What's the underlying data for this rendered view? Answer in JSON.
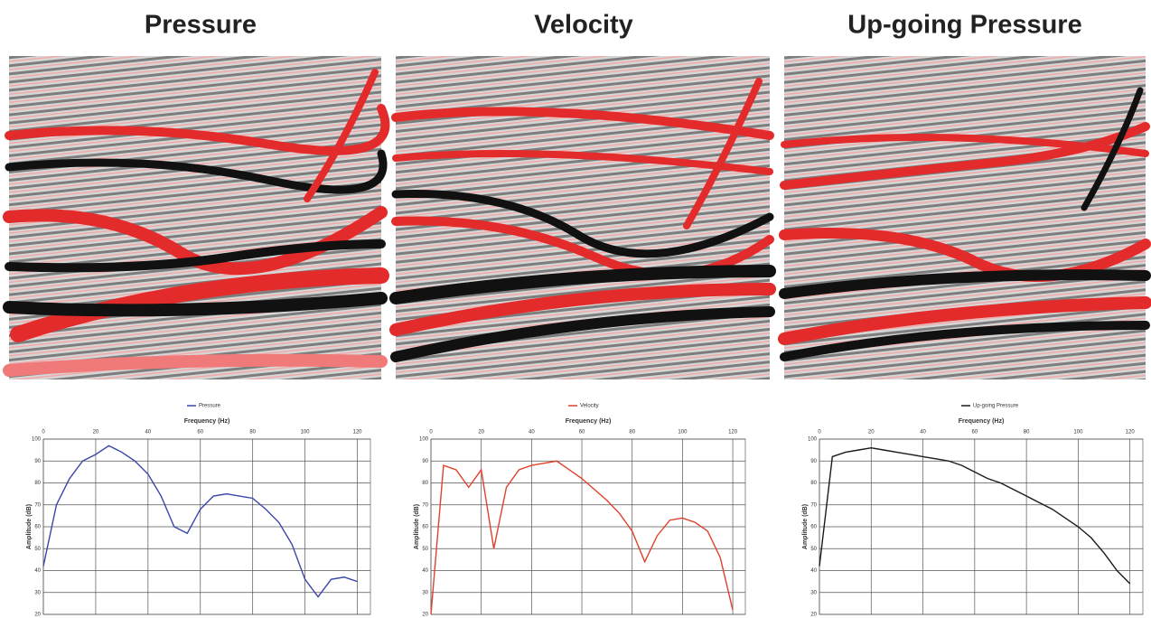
{
  "chart_data": [
    {
      "type": "line",
      "title": "Pressure",
      "x_label": "Frequency (Hz)",
      "y_label": "Amplitude (dB)",
      "x": [
        0,
        5,
        10,
        15,
        20,
        25,
        30,
        35,
        40,
        45,
        50,
        55,
        60,
        65,
        70,
        75,
        80,
        85,
        90,
        95,
        100,
        105,
        110,
        115,
        120
      ],
      "series": [
        {
          "name": "Pressure",
          "color": "#3a46a8",
          "values": [
            42,
            70,
            82,
            90,
            93,
            97,
            94,
            90,
            84,
            74,
            60,
            57,
            68,
            74,
            75,
            74,
            73,
            68,
            62,
            52,
            36,
            28,
            36,
            37,
            35
          ]
        }
      ],
      "xlim": [
        0,
        125
      ],
      "xticks": [
        0,
        20,
        40,
        60,
        80,
        100,
        120
      ],
      "ylim": [
        20,
        100
      ],
      "yticks": [
        20,
        30,
        40,
        50,
        60,
        70,
        80,
        90,
        100
      ],
      "grid": true
    },
    {
      "type": "line",
      "title": "Velocity",
      "x_label": "Frequency (Hz)",
      "y_label": "Amplitude (dB)",
      "x": [
        0,
        5,
        10,
        15,
        20,
        25,
        30,
        35,
        40,
        45,
        50,
        55,
        60,
        65,
        70,
        75,
        80,
        85,
        90,
        95,
        100,
        105,
        110,
        115,
        120
      ],
      "series": [
        {
          "name": "Velocity",
          "color": "#e0402c",
          "values": [
            20,
            88,
            86,
            78,
            86,
            50,
            78,
            86,
            88,
            89,
            90,
            86,
            82,
            77,
            72,
            66,
            58,
            44,
            56,
            63,
            64,
            62,
            58,
            46,
            22
          ]
        }
      ],
      "xlim": [
        0,
        125
      ],
      "xticks": [
        0,
        20,
        40,
        60,
        80,
        100,
        120
      ],
      "ylim": [
        20,
        100
      ],
      "yticks": [
        20,
        30,
        40,
        50,
        60,
        70,
        80,
        90,
        100
      ],
      "grid": true
    },
    {
      "type": "line",
      "title": "Up-going Pressure",
      "x_label": "Frequency (Hz)",
      "y_label": "Amplitude (dB)",
      "x": [
        0,
        5,
        10,
        15,
        20,
        25,
        30,
        35,
        40,
        45,
        50,
        55,
        60,
        65,
        70,
        75,
        80,
        85,
        90,
        95,
        100,
        105,
        110,
        115,
        120
      ],
      "series": [
        {
          "name": "Up-going Pressure",
          "color": "#1a1a1a",
          "values": [
            42,
            92,
            94,
            95,
            96,
            95,
            94,
            93,
            92,
            91,
            90,
            88,
            85,
            82,
            80,
            77,
            74,
            71,
            68,
            64,
            60,
            55,
            48,
            40,
            34
          ]
        }
      ],
      "xlim": [
        0,
        125
      ],
      "xticks": [
        0,
        20,
        40,
        60,
        80,
        100,
        120
      ],
      "ylim": [
        20,
        100
      ],
      "yticks": [
        20,
        30,
        40,
        50,
        60,
        70,
        80,
        90,
        100
      ],
      "grid": true
    }
  ]
}
